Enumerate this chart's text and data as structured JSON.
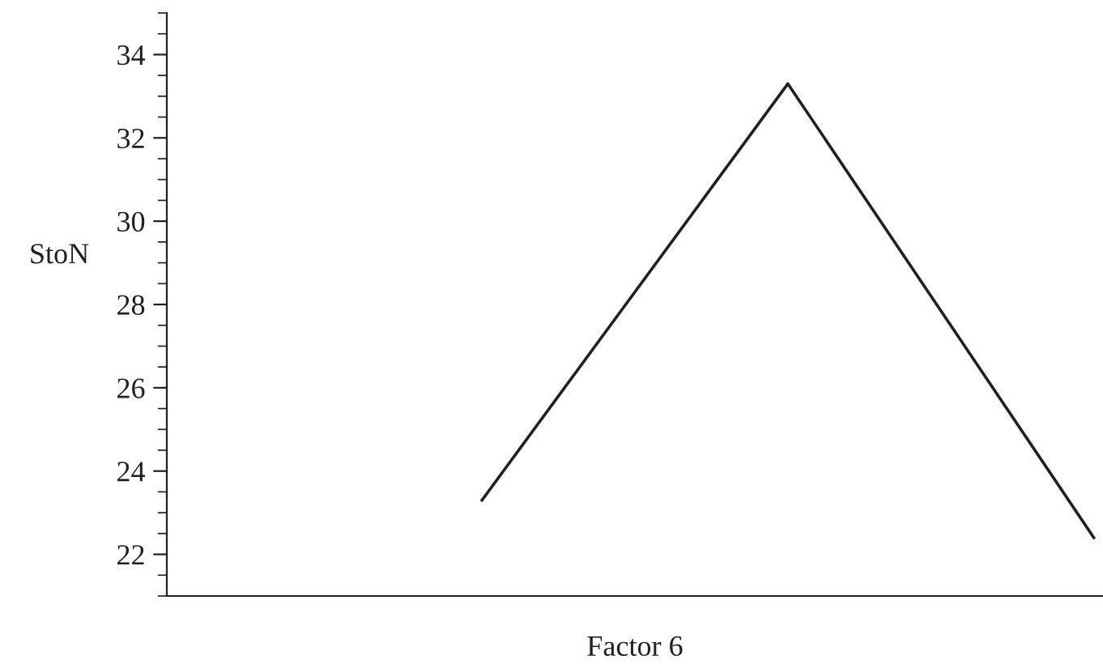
{
  "chart_data": {
    "type": "line",
    "xlabel": "Factor 6",
    "ylabel": "StoN",
    "categories": [
      null,
      null,
      null,
      null
    ],
    "series": [
      {
        "color": "#231f20",
        "values": [
          null,
          23.3,
          33.3,
          22.4
        ]
      }
    ],
    "ylim": [
      21,
      35
    ],
    "yticks": [
      22,
      24,
      26,
      28,
      30,
      32,
      34
    ],
    "grid": false,
    "legend": false,
    "marker": "none",
    "line_style": "solid",
    "tick_labels": "y"
  }
}
